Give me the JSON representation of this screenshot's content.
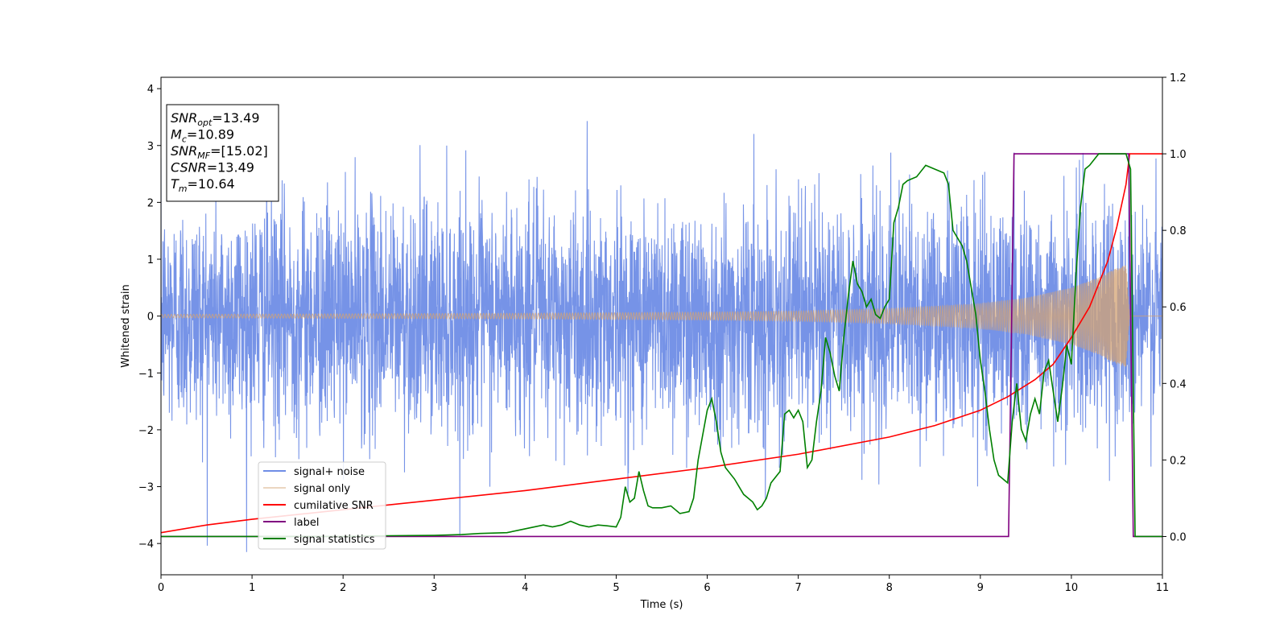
{
  "chart_data": {
    "type": "line",
    "xlabel": "Time (s)",
    "ylabel": "Whitened strain",
    "xlim": [
      0,
      11
    ],
    "ylim_left": [
      -4.55,
      4.2
    ],
    "ylim_right": [
      -0.1,
      1.2
    ],
    "xticks": [
      0,
      1,
      2,
      3,
      4,
      5,
      6,
      7,
      8,
      9,
      10,
      11
    ],
    "yticks_left": [
      -4,
      -3,
      -2,
      -1,
      0,
      1,
      2,
      3,
      4
    ],
    "yticks_right": [
      0.0,
      0.2,
      0.4,
      0.6,
      0.8,
      1.0,
      1.2
    ],
    "yticks_right_labels": [
      "0.0",
      "0.2",
      "0.4",
      "0.6",
      "0.8",
      "1.0",
      "1.2"
    ],
    "grid": false,
    "legend_position": "lower-left",
    "annotation_box": {
      "lines": [
        {
          "sym": "SNR",
          "sub": "opt",
          "val": "=13.49"
        },
        {
          "sym": "M",
          "sub": "c",
          "val": "=10.89"
        },
        {
          "sym": "SNR",
          "sub": "MF",
          "val": "=[15.02]"
        },
        {
          "sym": "CSNR",
          "sub": "",
          "val": "=13.49"
        },
        {
          "sym": "T",
          "sub": "m",
          "val": "=10.64"
        }
      ]
    },
    "series": [
      {
        "name": "signal+ noise",
        "axis": "left",
        "color": "#6f8de6",
        "kind": "noise",
        "noise_std": 1.0,
        "y_range_observed": [
          -4.15,
          3.8
        ],
        "x_range": [
          0,
          11
        ]
      },
      {
        "name": "signal only",
        "axis": "left",
        "color": "#d4a373",
        "kind": "chirp",
        "merger_time": 10.64,
        "end_time": 10.7,
        "envelope_points": [
          [
            0,
            0.03
          ],
          [
            2,
            0.04
          ],
          [
            4,
            0.05
          ],
          [
            6,
            0.07
          ],
          [
            7,
            0.09
          ],
          [
            8,
            0.13
          ],
          [
            9,
            0.22
          ],
          [
            9.5,
            0.32
          ],
          [
            10,
            0.5
          ],
          [
            10.3,
            0.68
          ],
          [
            10.5,
            0.85
          ],
          [
            10.6,
            0.9
          ],
          [
            10.64,
            0.0
          ]
        ]
      },
      {
        "name": "cumilative SNR",
        "axis": "right",
        "color": "#ff0000",
        "x": [
          0,
          0.5,
          1,
          2,
          3,
          4,
          5,
          6,
          7,
          8,
          8.5,
          9,
          9.3,
          9.6,
          9.8,
          10.0,
          10.2,
          10.4,
          10.5,
          10.6,
          10.64,
          11
        ],
        "values": [
          0.01,
          0.03,
          0.045,
          0.07,
          0.095,
          0.12,
          0.15,
          0.18,
          0.215,
          0.26,
          0.29,
          0.33,
          0.365,
          0.41,
          0.45,
          0.52,
          0.6,
          0.72,
          0.81,
          0.92,
          1.0,
          1.0
        ]
      },
      {
        "name": "label",
        "axis": "right",
        "color": "#800080",
        "x": [
          0,
          9.31,
          9.37,
          10.63,
          10.68,
          11
        ],
        "values": [
          0.0,
          0.0,
          1.0,
          1.0,
          0.0,
          0.0
        ]
      },
      {
        "name": "signal statistics",
        "axis": "right",
        "color": "#008000",
        "x": [
          0,
          1,
          2,
          2.5,
          3,
          3.3,
          3.5,
          3.8,
          4.0,
          4.1,
          4.2,
          4.3,
          4.4,
          4.5,
          4.6,
          4.7,
          4.8,
          4.9,
          5.0,
          5.05,
          5.1,
          5.15,
          5.2,
          5.25,
          5.3,
          5.35,
          5.4,
          5.5,
          5.6,
          5.7,
          5.8,
          5.85,
          5.9,
          6.0,
          6.05,
          6.1,
          6.15,
          6.2,
          6.3,
          6.35,
          6.4,
          6.45,
          6.5,
          6.55,
          6.6,
          6.65,
          6.7,
          6.8,
          6.85,
          6.9,
          6.95,
          7.0,
          7.05,
          7.1,
          7.15,
          7.2,
          7.25,
          7.3,
          7.35,
          7.4,
          7.45,
          7.5,
          7.55,
          7.6,
          7.65,
          7.7,
          7.75,
          7.8,
          7.85,
          7.9,
          7.95,
          8.0,
          8.05,
          8.1,
          8.15,
          8.2,
          8.3,
          8.4,
          8.5,
          8.6,
          8.65,
          8.7,
          8.8,
          8.85,
          8.9,
          8.95,
          9.0,
          9.05,
          9.1,
          9.15,
          9.2,
          9.25,
          9.3,
          9.35,
          9.4,
          9.45,
          9.5,
          9.55,
          9.6,
          9.65,
          9.7,
          9.75,
          9.8,
          9.85,
          9.9,
          9.95,
          10.0,
          10.05,
          10.1,
          10.15,
          10.2,
          10.3,
          10.4,
          10.45,
          10.5,
          10.55,
          10.6,
          10.65,
          10.7,
          11
        ],
        "values": [
          0.0,
          0.0,
          0.0,
          0.002,
          0.003,
          0.005,
          0.008,
          0.01,
          0.02,
          0.025,
          0.03,
          0.025,
          0.03,
          0.04,
          0.03,
          0.025,
          0.03,
          0.028,
          0.025,
          0.05,
          0.13,
          0.09,
          0.1,
          0.17,
          0.12,
          0.08,
          0.075,
          0.075,
          0.08,
          0.06,
          0.065,
          0.1,
          0.2,
          0.33,
          0.36,
          0.3,
          0.22,
          0.18,
          0.15,
          0.13,
          0.11,
          0.1,
          0.09,
          0.07,
          0.08,
          0.1,
          0.14,
          0.17,
          0.32,
          0.33,
          0.31,
          0.33,
          0.3,
          0.18,
          0.2,
          0.3,
          0.38,
          0.52,
          0.48,
          0.42,
          0.38,
          0.52,
          0.63,
          0.72,
          0.66,
          0.64,
          0.6,
          0.62,
          0.58,
          0.57,
          0.6,
          0.62,
          0.82,
          0.86,
          0.92,
          0.93,
          0.94,
          0.97,
          0.96,
          0.95,
          0.92,
          0.8,
          0.76,
          0.72,
          0.65,
          0.58,
          0.46,
          0.38,
          0.28,
          0.2,
          0.16,
          0.15,
          0.14,
          0.3,
          0.4,
          0.28,
          0.25,
          0.32,
          0.36,
          0.32,
          0.43,
          0.46,
          0.38,
          0.3,
          0.39,
          0.5,
          0.45,
          0.68,
          0.86,
          0.96,
          0.97,
          1.0,
          1.0,
          1.0,
          1.0,
          1.0,
          1.0,
          0.96,
          0.0,
          0.0
        ]
      }
    ]
  }
}
